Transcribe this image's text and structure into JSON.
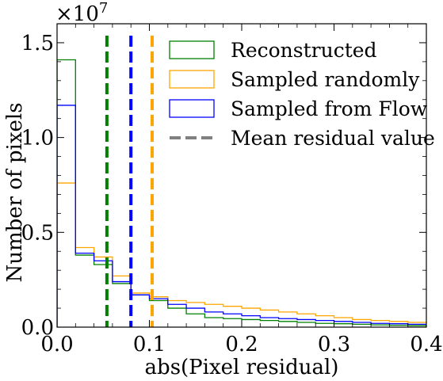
{
  "chart_data": {
    "type": "histogram-step",
    "xlabel": "abs(Pixel residual)",
    "ylabel": "Number of pixels",
    "y_multiplier": "×10",
    "y_multiplier_exp": "7",
    "xlim": [
      0.0,
      0.4
    ],
    "ylim": [
      0.0,
      1.6
    ],
    "x_ticks": [
      {
        "value": 0.0,
        "label": "0.0"
      },
      {
        "value": 0.1,
        "label": "0.1"
      },
      {
        "value": 0.2,
        "label": "0.2"
      },
      {
        "value": 0.3,
        "label": "0.3"
      },
      {
        "value": 0.4,
        "label": "0.4"
      }
    ],
    "y_ticks": [
      {
        "value": 0.0,
        "label": "0.0"
      },
      {
        "value": 0.5,
        "label": "0.5"
      },
      {
        "value": 1.0,
        "label": "1.0"
      },
      {
        "value": 1.5,
        "label": "1.5"
      }
    ],
    "bin_edges": [
      0.0,
      0.02,
      0.04,
      0.06,
      0.08,
      0.1,
      0.12,
      0.14,
      0.16,
      0.18,
      0.2,
      0.22,
      0.24,
      0.26,
      0.28,
      0.3,
      0.32,
      0.34,
      0.36,
      0.38,
      0.4
    ],
    "series": [
      {
        "name": "Reconstructed",
        "color": "#008000",
        "values": [
          1.41,
          0.38,
          0.33,
          0.23,
          0.17,
          0.14,
          0.1,
          0.07,
          0.05,
          0.045,
          0.04,
          0.035,
          0.03,
          0.025,
          0.02,
          0.018,
          0.015,
          0.012,
          0.01,
          0.008
        ]
      },
      {
        "name": "Sampled randomly",
        "color": "#FFA500",
        "values": [
          0.76,
          0.42,
          0.37,
          0.27,
          0.18,
          0.16,
          0.14,
          0.13,
          0.12,
          0.11,
          0.1,
          0.09,
          0.08,
          0.07,
          0.06,
          0.05,
          0.04,
          0.035,
          0.03,
          0.025
        ]
      },
      {
        "name": "Sampled from Flow",
        "color": "#0000FF",
        "values": [
          1.17,
          0.39,
          0.35,
          0.24,
          0.17,
          0.15,
          0.12,
          0.1,
          0.08,
          0.07,
          0.06,
          0.05,
          0.045,
          0.04,
          0.035,
          0.03,
          0.025,
          0.02,
          0.018,
          0.015
        ]
      }
    ],
    "mean_lines": [
      {
        "x": 0.054,
        "color": "#008000"
      },
      {
        "x": 0.08,
        "color": "#0000FF"
      },
      {
        "x": 0.103,
        "color": "#FFA500"
      }
    ],
    "legend": {
      "placement": "upper-right",
      "entries": [
        {
          "label": "Reconstructed",
          "style": "box",
          "color": "#008000"
        },
        {
          "label": "Sampled randomly",
          "style": "box",
          "color": "#FFA500"
        },
        {
          "label": "Sampled from Flow",
          "style": "box",
          "color": "#0000FF"
        },
        {
          "label": "Mean residual value",
          "style": "dashed",
          "color": "#808080"
        }
      ]
    },
    "grid": false
  }
}
